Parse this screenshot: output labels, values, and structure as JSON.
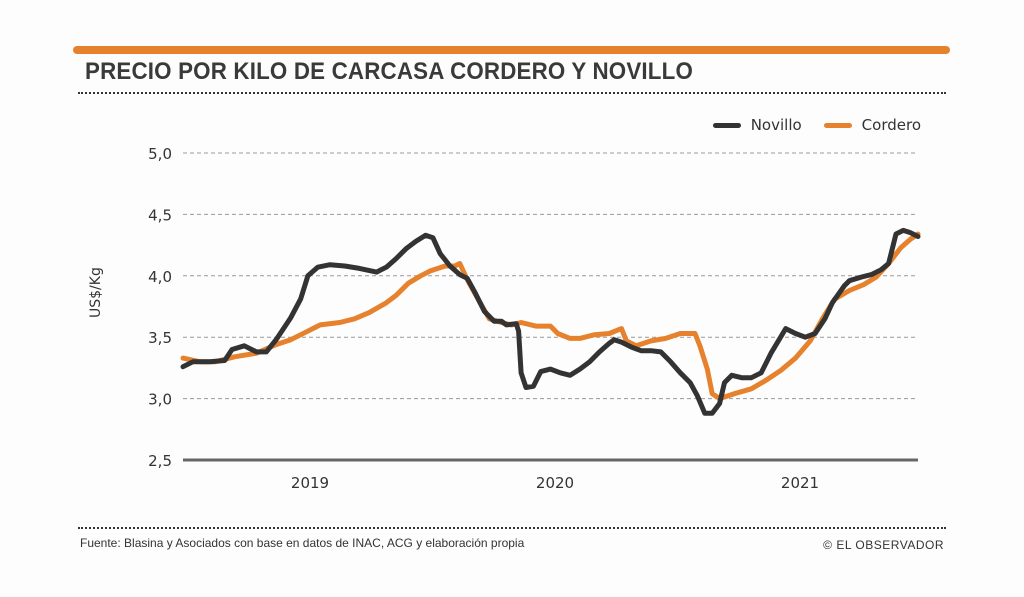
{
  "colors": {
    "accent": "#e6822e",
    "novillo": "#333333",
    "cordero": "#e6822e",
    "grid": "#9a9a9a",
    "axis": "#666666"
  },
  "header": {
    "title": "PRECIO POR KILO DE CARCASA CORDERO Y NOVILLO"
  },
  "footer": {
    "source": "Fuente: Blasina y Asociados con base en datos de INAC, ACG y elaboración propia",
    "credit": "© EL OBSERVADOR"
  },
  "chart_data": {
    "type": "line",
    "title": "PRECIO POR KILO DE CARCASA CORDERO Y NOVILLO",
    "xlabel": "",
    "ylabel": "US$/Kg",
    "ylim": [
      2.5,
      5.0
    ],
    "xlim": [
      2018.48,
      2021.48
    ],
    "yticks": [
      2.5,
      3.0,
      3.5,
      4.0,
      4.5,
      5.0
    ],
    "ytick_labels": [
      "2,5",
      "3,0",
      "3,5",
      "4,0",
      "4,5",
      "5,0"
    ],
    "xticks": [
      2019,
      2020,
      2021
    ],
    "xtick_labels": [
      "2019",
      "2020",
      "2021"
    ],
    "grid": "horizontal dashed",
    "legend": {
      "placement": "top-right",
      "entries": [
        "Novillo",
        "Cordero"
      ]
    },
    "series": [
      {
        "name": "Novillo",
        "x": [
          2018.48,
          2018.52,
          2018.59,
          2018.65,
          2018.68,
          2018.73,
          2018.78,
          2018.82,
          2018.86,
          2018.92,
          2018.96,
          2018.99,
          2019.03,
          2019.08,
          2019.14,
          2019.2,
          2019.27,
          2019.31,
          2019.35,
          2019.39,
          2019.43,
          2019.47,
          2019.5,
          2019.53,
          2019.57,
          2019.61,
          2019.64,
          2019.67,
          2019.71,
          2019.75,
          2019.78,
          2019.8,
          2019.84,
          2019.85,
          2019.86,
          2019.88,
          2019.91,
          2019.94,
          2019.98,
          2020.02,
          2020.06,
          2020.1,
          2020.14,
          2020.18,
          2020.22,
          2020.24,
          2020.27,
          2020.31,
          2020.35,
          2020.39,
          2020.43,
          2020.47,
          2020.51,
          2020.55,
          2020.58,
          2020.61,
          2020.64,
          2020.67,
          2020.69,
          2020.72,
          2020.76,
          2020.8,
          2020.84,
          2020.88,
          2020.94,
          2020.98,
          2021.02,
          2021.06,
          2021.1,
          2021.13,
          2021.18,
          2021.2,
          2021.25,
          2021.29,
          2021.33,
          2021.36,
          2021.39,
          2021.42,
          2021.45,
          2021.48
        ],
        "values": [
          3.26,
          3.3,
          3.3,
          3.31,
          3.4,
          3.43,
          3.38,
          3.38,
          3.48,
          3.66,
          3.81,
          4.0,
          4.07,
          4.09,
          4.08,
          4.06,
          4.03,
          4.07,
          4.14,
          4.22,
          4.28,
          4.33,
          4.31,
          4.18,
          4.08,
          4.01,
          3.98,
          3.87,
          3.71,
          3.63,
          3.63,
          3.6,
          3.61,
          3.55,
          3.21,
          3.09,
          3.1,
          3.22,
          3.24,
          3.21,
          3.19,
          3.24,
          3.3,
          3.38,
          3.45,
          3.48,
          3.46,
          3.42,
          3.39,
          3.39,
          3.38,
          3.3,
          3.21,
          3.13,
          3.02,
          2.88,
          2.88,
          2.96,
          3.13,
          3.19,
          3.17,
          3.17,
          3.21,
          3.37,
          3.57,
          3.53,
          3.5,
          3.53,
          3.65,
          3.78,
          3.92,
          3.96,
          3.99,
          4.01,
          4.05,
          4.1,
          4.34,
          4.37,
          4.35,
          4.32
        ]
      },
      {
        "name": "Cordero",
        "x": [
          2018.48,
          2018.55,
          2018.61,
          2018.69,
          2018.78,
          2018.86,
          2018.92,
          2018.98,
          2019.04,
          2019.12,
          2019.18,
          2019.24,
          2019.31,
          2019.35,
          2019.4,
          2019.45,
          2019.49,
          2019.55,
          2019.59,
          2019.61,
          2019.64,
          2019.69,
          2019.73,
          2019.78,
          2019.82,
          2019.86,
          2019.92,
          2019.98,
          2020.01,
          2020.06,
          2020.1,
          2020.16,
          2020.22,
          2020.27,
          2020.29,
          2020.33,
          2020.39,
          2020.45,
          2020.51,
          2020.57,
          2020.59,
          2020.62,
          2020.64,
          2020.67,
          2020.73,
          2020.8,
          2020.86,
          2020.92,
          2020.98,
          2021.04,
          2021.09,
          2021.14,
          2021.2,
          2021.26,
          2021.31,
          2021.36,
          2021.41,
          2021.45,
          2021.48
        ],
        "values": [
          3.33,
          3.3,
          3.3,
          3.34,
          3.37,
          3.44,
          3.48,
          3.54,
          3.6,
          3.62,
          3.65,
          3.7,
          3.78,
          3.84,
          3.94,
          4.0,
          4.04,
          4.08,
          4.08,
          4.1,
          3.97,
          3.79,
          3.65,
          3.62,
          3.6,
          3.62,
          3.59,
          3.59,
          3.53,
          3.49,
          3.49,
          3.52,
          3.53,
          3.57,
          3.47,
          3.43,
          3.47,
          3.49,
          3.53,
          3.53,
          3.43,
          3.24,
          3.04,
          3.0,
          3.04,
          3.08,
          3.15,
          3.23,
          3.33,
          3.47,
          3.65,
          3.81,
          3.88,
          3.93,
          3.99,
          4.1,
          4.23,
          4.3,
          4.34
        ]
      }
    ]
  }
}
